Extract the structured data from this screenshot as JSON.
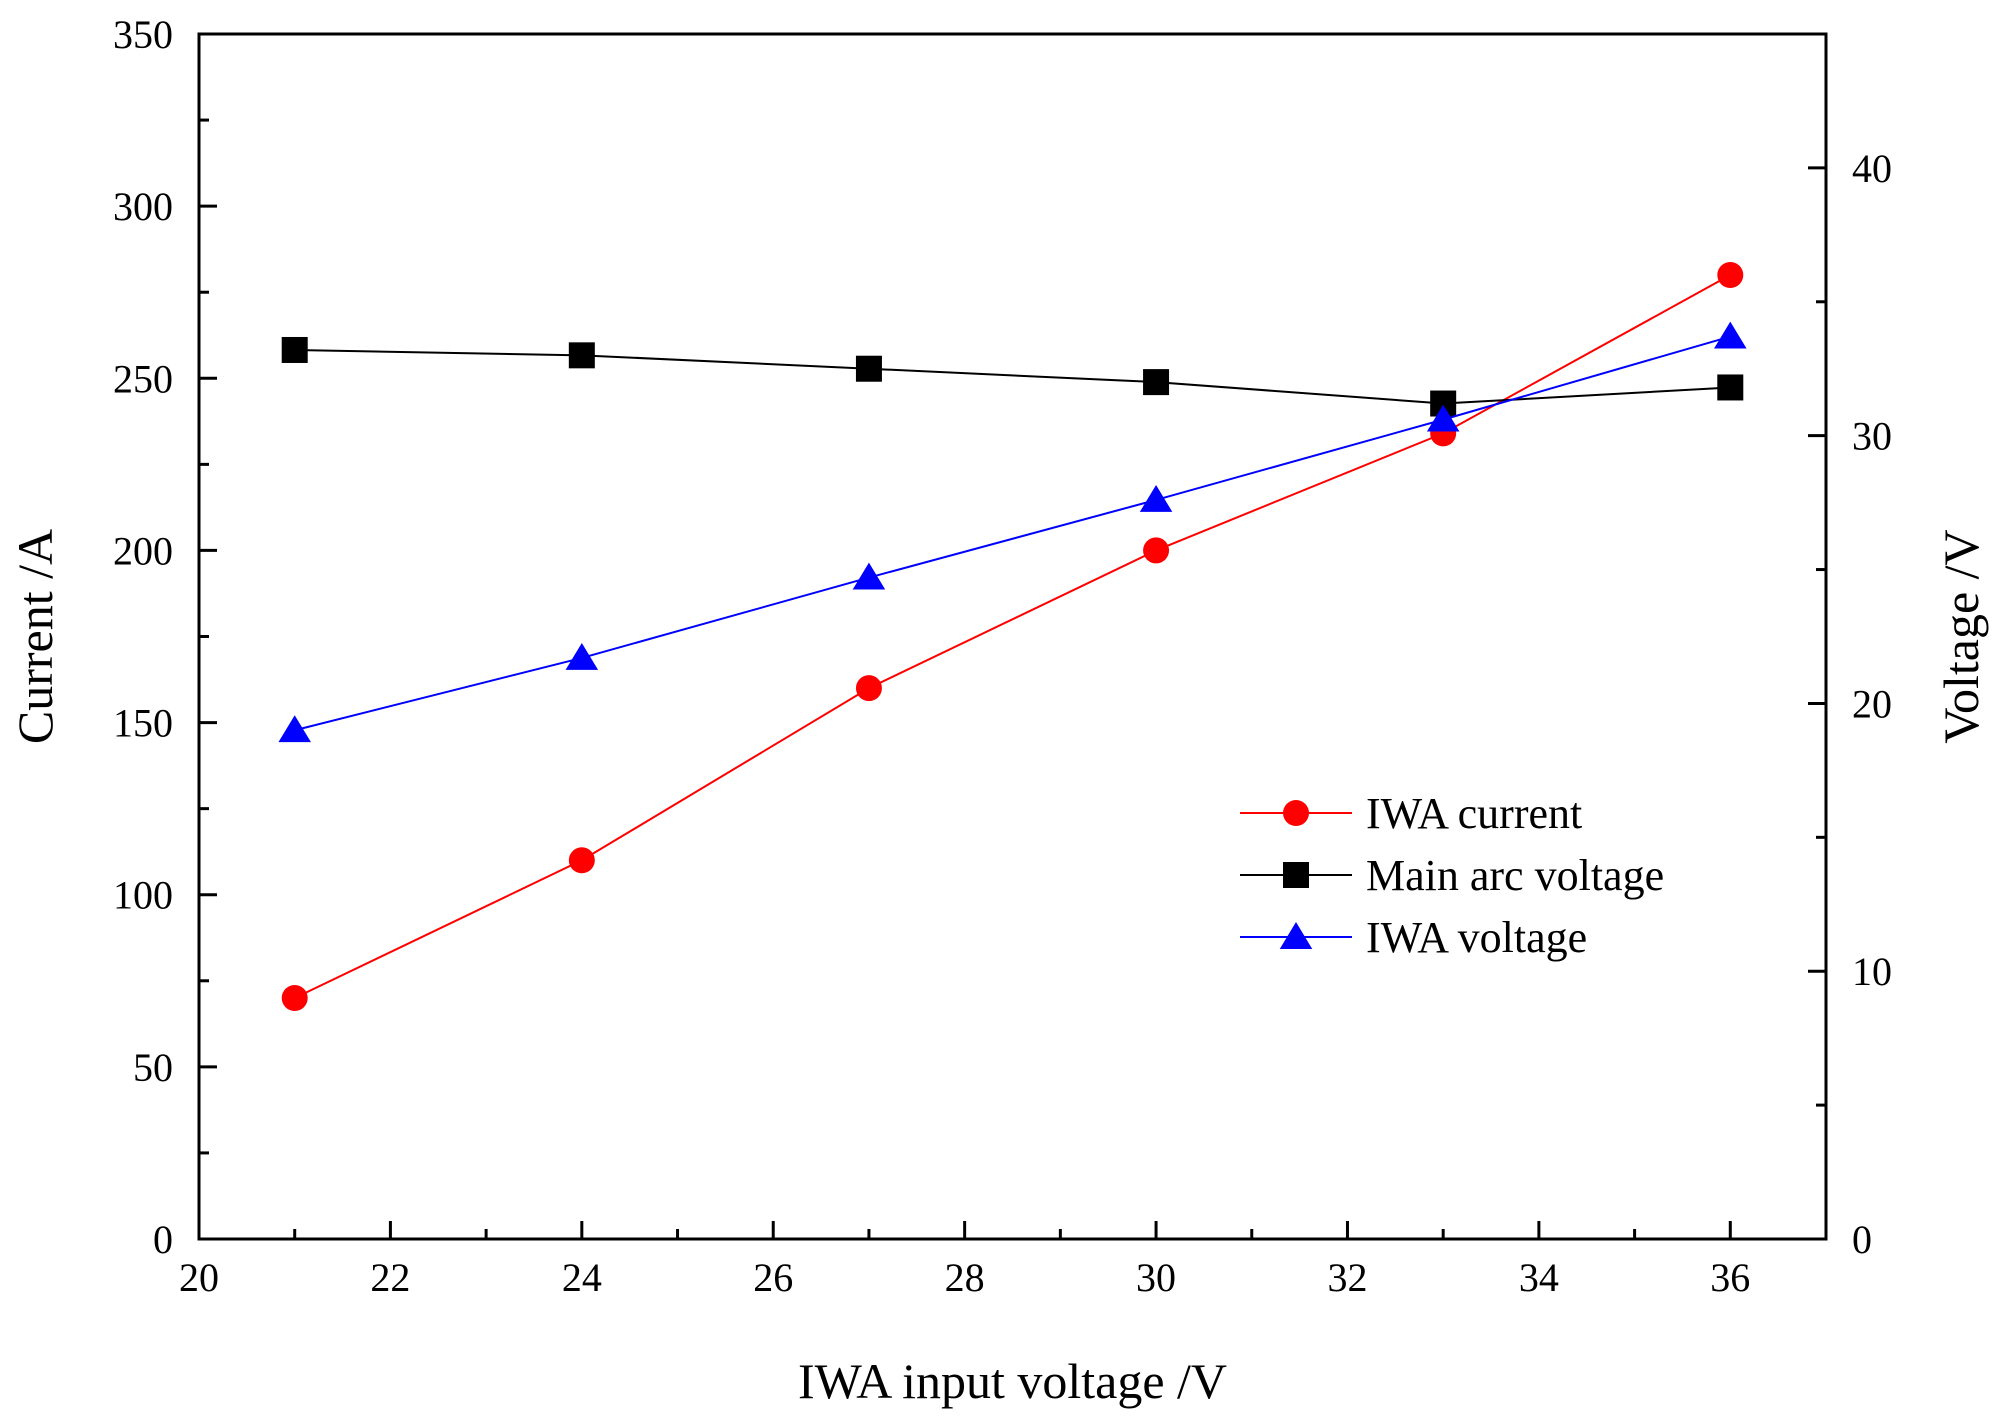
{
  "chart_data": {
    "type": "line",
    "title": "",
    "xlabel": "IWA input voltage /V",
    "ylabel": "Current /A",
    "y2label": "Voltage /V",
    "xlim": [
      20,
      37
    ],
    "ylim": [
      0,
      350
    ],
    "y2lim": [
      0,
      45
    ],
    "x_ticks": [
      20,
      22,
      24,
      26,
      28,
      30,
      32,
      34,
      36
    ],
    "y_ticks": [
      0,
      50,
      100,
      150,
      200,
      250,
      300,
      350
    ],
    "y2_ticks": [
      0,
      10,
      20,
      30,
      40
    ],
    "grid": false,
    "legend_position": "center-right",
    "x": [
      21,
      24,
      27,
      30,
      33,
      36
    ],
    "series": [
      {
        "name": "IWA current",
        "axis": "left",
        "color": "#ff0000",
        "marker": "circle",
        "values": [
          70,
          110,
          160,
          200,
          234,
          280
        ]
      },
      {
        "name": "Main arc voltage",
        "axis": "right",
        "color": "#000000",
        "marker": "square",
        "values": [
          33.2,
          33.0,
          32.5,
          32.0,
          31.2,
          31.8
        ]
      },
      {
        "name": "IWA voltage",
        "axis": "right",
        "color": "#0000ff",
        "marker": "triangle",
        "values": [
          19.0,
          21.7,
          24.7,
          27.6,
          30.6,
          33.7
        ]
      }
    ]
  }
}
